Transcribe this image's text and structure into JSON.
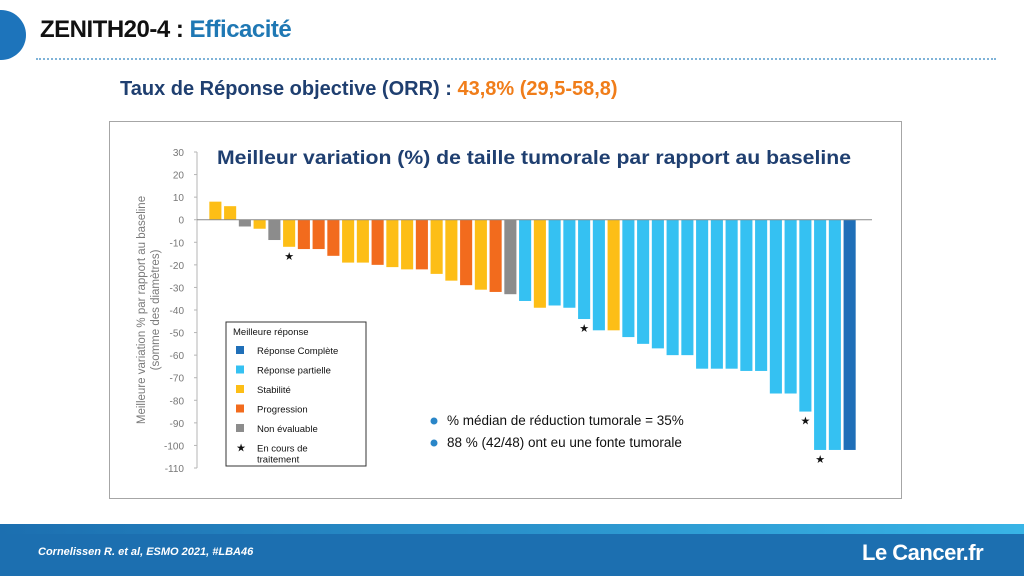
{
  "slide": {
    "title_main": "ZENITH20-4 : ",
    "title_accent": "Efficacité",
    "subtitle_main": "Taux de Réponse objective (ORR) : ",
    "subtitle_value": "43,8% (29,5-58,8)",
    "footer_citation": "Cornelissen R. et al, ESMO 2021, #LBA46",
    "footer_logo": "Le Cancer.fr"
  },
  "colors": {
    "complete": "#1f6fb8",
    "partial": "#35c1f2",
    "stable": "#fdbe16",
    "progression": "#f26b1d",
    "non_evaluable": "#8c8c8c",
    "title_accent": "#1f78b4",
    "subtitle_accent": "#f07d1a"
  },
  "chart_data": {
    "type": "bar",
    "title": "Meilleur variation (%)  de taille tumorale par rapport au baseline",
    "ylabel_line1": "Meilleure variation  % par rapport au baseline",
    "ylabel_line2": "(somme des diamètres)",
    "ylim": [
      -110,
      30
    ],
    "yticks": [
      30,
      20,
      10,
      0,
      -10,
      -20,
      -30,
      -40,
      -50,
      -60,
      -70,
      -80,
      -90,
      -100,
      -110
    ],
    "grid": false,
    "legend_position": "bottom-left",
    "legend": {
      "title": "Meilleure réponse",
      "items": [
        {
          "key": "complete",
          "label": "Réponse Complète"
        },
        {
          "key": "partial",
          "label": "Réponse partielle"
        },
        {
          "key": "stable",
          "label": "Stabilité"
        },
        {
          "key": "progression",
          "label": "Progression"
        },
        {
          "key": "non_evaluable",
          "label": "Non évaluable"
        },
        {
          "key": "ongoing",
          "label": "En cours de traitement",
          "symbol": "★"
        }
      ]
    },
    "annotations": [
      "% médian de réduction tumorale = 35%",
      "88 % (42/48) ont eu une fonte tumorale"
    ],
    "values": [
      8,
      6,
      -3,
      -4,
      -9,
      -12,
      -13,
      -13,
      -16,
      -19,
      -19,
      -20,
      -21,
      -22,
      -22,
      -24,
      -27,
      -29,
      -31,
      -32,
      -33,
      -36,
      -39,
      -38,
      -39,
      -44,
      -49,
      -49,
      -52,
      -55,
      -57,
      -60,
      -60,
      -66,
      -66,
      -66,
      -67,
      -67,
      -77,
      -77,
      -85,
      -102,
      -102,
      -102
    ],
    "categories_response": [
      "stable",
      "stable",
      "non_evaluable",
      "stable",
      "non_evaluable",
      "stable",
      "progression",
      "progression",
      "progression",
      "stable",
      "stable",
      "progression",
      "stable",
      "stable",
      "progression",
      "stable",
      "stable",
      "progression",
      "stable",
      "progression",
      "non_evaluable",
      "partial",
      "stable",
      "partial",
      "partial",
      "partial",
      "partial",
      "stable",
      "partial",
      "partial",
      "partial",
      "partial",
      "partial",
      "partial",
      "partial",
      "partial",
      "partial",
      "partial",
      "partial",
      "partial",
      "partial",
      "partial",
      "partial",
      "complete"
    ],
    "ongoing_star_indices": [
      5,
      25,
      40,
      41
    ]
  }
}
